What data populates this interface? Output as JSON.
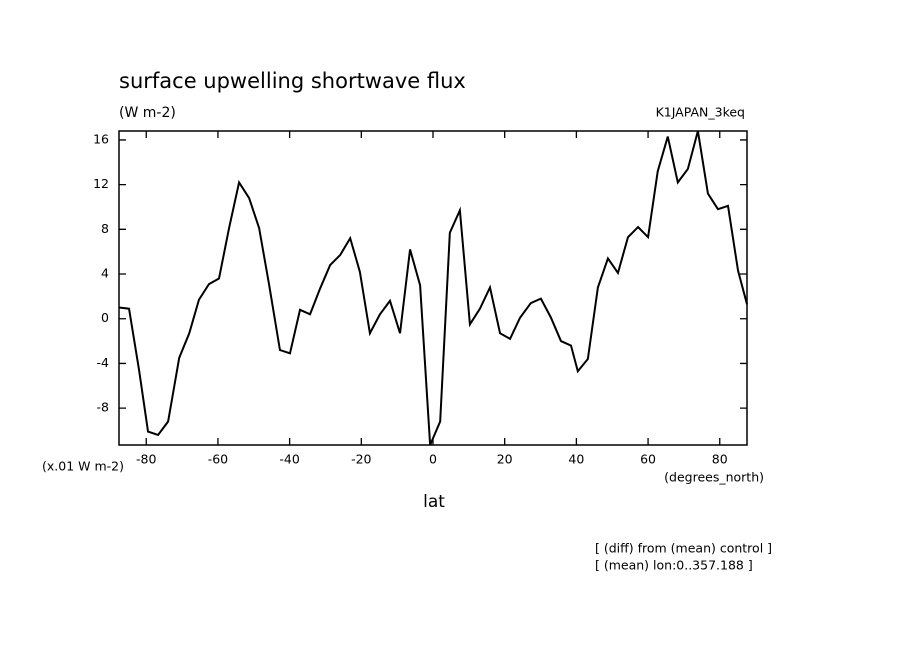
{
  "chart_data": {
    "type": "line",
    "title": "surface upwelling shortwave flux",
    "units": "(W m-2)",
    "run_label": "K1JAPAN_3keq",
    "scale_label": "(x.01 W m-2)",
    "x_label": "lat",
    "x_units": "(degrees_north)",
    "notes": [
      "[ (diff) from (mean) control ]",
      "[ (mean) lon:0..357.188 ]"
    ],
    "xlim": [
      -87.6,
      87.6
    ],
    "xticks": [
      -80,
      -60,
      -40,
      -20,
      0,
      20,
      40,
      60,
      80
    ],
    "ylim": [
      -11.3,
      16.8
    ],
    "yticks": [
      -8,
      -4,
      0,
      4,
      8,
      12,
      16
    ],
    "series": [
      {
        "color": "#000000",
        "x": [
          -87.6,
          -84.8,
          -82,
          -79.5,
          -76.7,
          -73.9,
          -70.8,
          -68,
          -65.3,
          -62.5,
          -59.7,
          -56.9,
          -54.1,
          -51.3,
          -48.5,
          -45.7,
          -42.7,
          -39.9,
          -37.1,
          -34.3,
          -31.5,
          -28.7,
          -25.9,
          -23.1,
          -20.4,
          -17.6,
          -14.8,
          -12.0,
          -9.2,
          -6.4,
          -3.6,
          -0.8,
          2.0,
          4.7,
          7.5,
          10.3,
          13.1,
          15.9,
          18.7,
          21.5,
          24.3,
          27.3,
          30.1,
          32.9,
          35.7,
          38.5,
          40.4,
          43.2,
          46.0,
          48.8,
          51.6,
          54.4,
          57.2,
          60.0,
          62.7,
          65.5,
          68.3,
          71.1,
          73.9,
          76.7,
          79.5,
          82.3,
          85.1,
          87.6
        ],
        "values": [
          1.0,
          0.9,
          -4.6,
          -10.1,
          -10.4,
          -9.2,
          -3.5,
          -1.3,
          1.7,
          3.1,
          3.6,
          8.1,
          12.2,
          10.8,
          8.1,
          3.0,
          -2.8,
          -3.1,
          0.8,
          0.4,
          2.7,
          4.8,
          5.7,
          7.2,
          4.2,
          -1.3,
          0.4,
          1.6,
          -1.3,
          6.2,
          3.0,
          -11.3,
          -9.2,
          7.7,
          9.7,
          -0.5,
          0.9,
          2.8,
          -1.3,
          -1.8,
          0.1,
          1.4,
          1.8,
          0.1,
          -2.0,
          -2.4,
          -4.7,
          -3.6,
          2.8,
          5.4,
          4.1,
          7.3,
          8.2,
          7.3,
          13.2,
          16.3,
          12.2,
          13.4,
          16.8,
          11.2,
          9.8,
          10.1,
          4.3,
          1.3
        ]
      }
    ]
  }
}
